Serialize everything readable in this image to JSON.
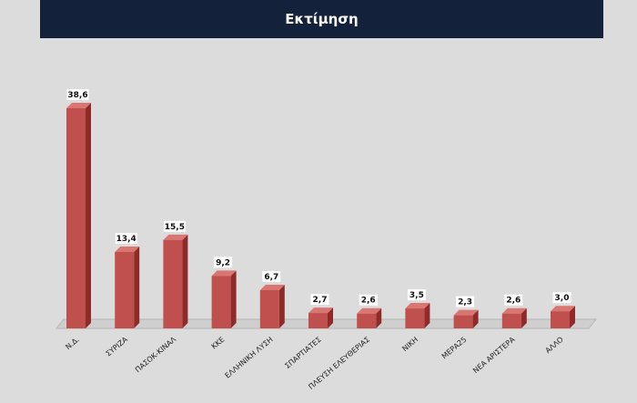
{
  "header": {
    "title": "Εκτίμηση"
  },
  "colors": {
    "header_bg": "#13213b",
    "bar_front": "#c0504d",
    "bar_side": "#8e2a28",
    "bar_top": "#d97672",
    "floor": "#cfcfcf"
  },
  "chart_data": {
    "type": "bar",
    "title": "Εκτίμηση",
    "xlabel": "",
    "ylabel": "",
    "ylim": [
      0,
      40
    ],
    "grid": false,
    "legend": "none",
    "categories": [
      "Ν.Δ.",
      "ΣΥΡΙΖΑ",
      "ΠΑΣΟΚ-ΚΙΝΑΛ",
      "ΚΚΕ",
      "ΕΛΛΗΝΙΚΗ ΛΥΣΗ",
      "ΣΠΑΡΤΙΑΤΕΣ",
      "ΠΛΕΥΣΗ ΕΛΕΥΘΕΡΙΑΣ",
      "ΝΙΚΗ",
      "ΜΕΡΑ25",
      "ΝΕΑ ΑΡΙΣΤΕΡΑ",
      "ΑΛΛΟ"
    ],
    "values": [
      38.6,
      13.4,
      15.5,
      9.2,
      6.7,
      2.7,
      2.6,
      3.5,
      2.3,
      2.6,
      3.0
    ],
    "labels": [
      "38,6",
      "13,4",
      "15,5",
      "9,2",
      "6,7",
      "2,7",
      "2,6",
      "3,5",
      "2,3",
      "2,6",
      "3,0"
    ]
  }
}
